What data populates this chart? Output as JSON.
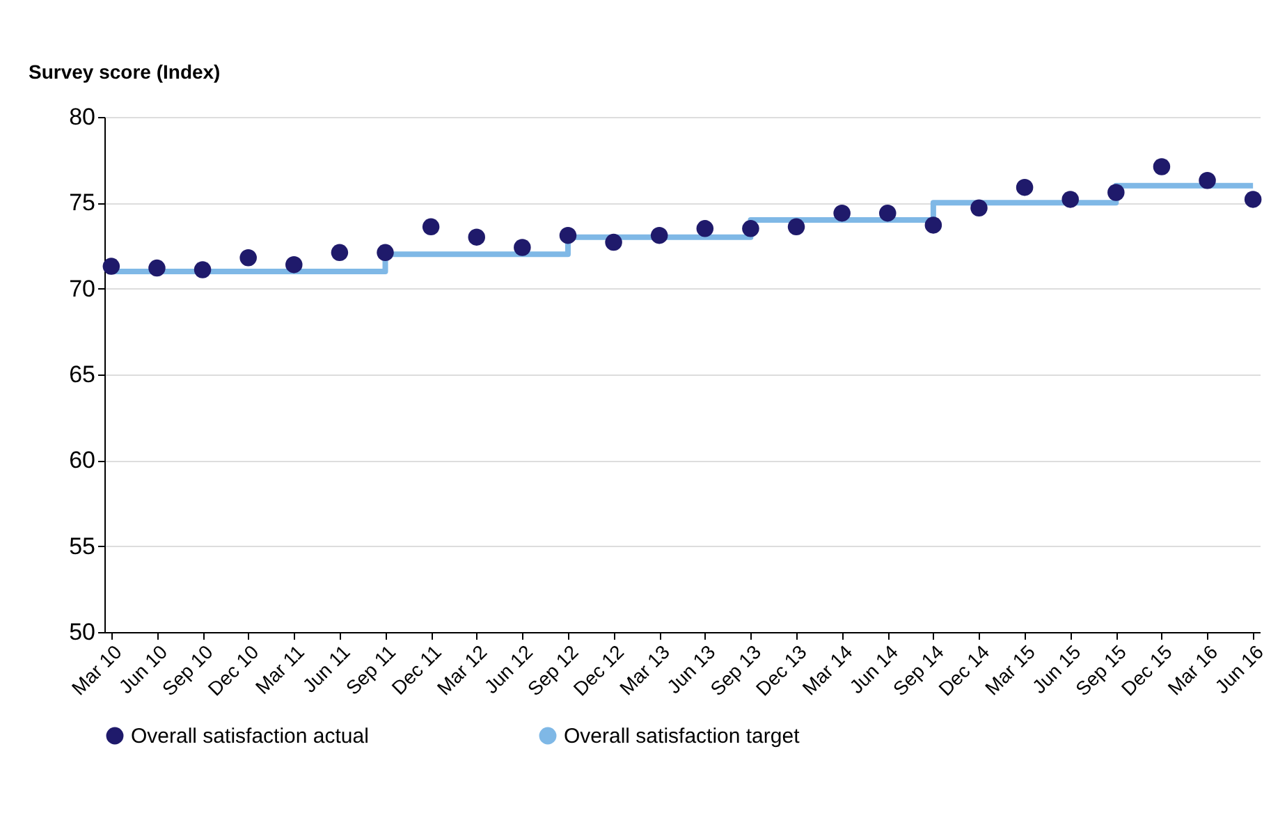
{
  "chart_data": {
    "type": "scatter",
    "ylabel": "Survey score (Index)",
    "categories": [
      "Mar 10",
      "Jun 10",
      "Sep 10",
      "Dec 10",
      "Mar 11",
      "Jun 11",
      "Sep 11",
      "Dec 11",
      "Mar 12",
      "Jun 12",
      "Sep 12",
      "Dec 12",
      "Mar 13",
      "Jun 13",
      "Sep 13",
      "Dec 13",
      "Mar 14",
      "Jun 14",
      "Sep 14",
      "Dec 14",
      "Mar 15",
      "Jun 15",
      "Sep 15",
      "Dec 15",
      "Mar 16",
      "Jun 16"
    ],
    "series": [
      {
        "name": "Overall satisfaction actual",
        "color": "#1f1a6b",
        "marker": "circle",
        "values": [
          71.3,
          71.2,
          71.1,
          71.8,
          71.4,
          72.1,
          72.1,
          73.6,
          73.0,
          72.4,
          73.1,
          72.7,
          73.1,
          73.5,
          73.5,
          73.6,
          74.4,
          74.4,
          73.7,
          74.7,
          75.9,
          75.2,
          75.6,
          77.1,
          76.3,
          75.2
        ]
      },
      {
        "name": "Overall satisfaction target",
        "type": "step",
        "color": "#7fb8e6",
        "line_style": "solid",
        "values": [
          71,
          71,
          71,
          71,
          71,
          71,
          72,
          72,
          72,
          72,
          73,
          73,
          73,
          73,
          74,
          74,
          74,
          74,
          75,
          75,
          75,
          75,
          76,
          76,
          76,
          76
        ]
      }
    ],
    "ylim": [
      50,
      80
    ],
    "yticks": [
      50,
      55,
      60,
      65,
      70,
      75,
      80
    ],
    "grid": "y",
    "legend": "bottom"
  }
}
